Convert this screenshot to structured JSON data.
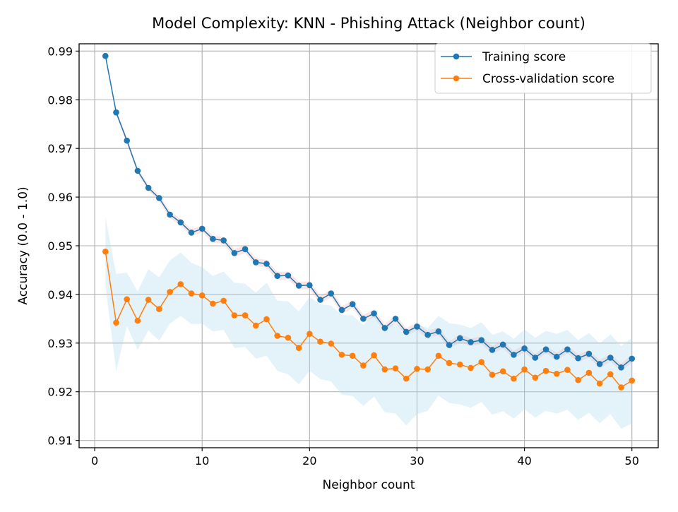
{
  "chart_data": {
    "type": "line",
    "title": "Model Complexity: KNN - Phishing Attack (Neighbor count)",
    "xlabel": "Neighbor count",
    "ylabel": "Accuracy (0.0 - 1.0)",
    "xlim": [
      -1.45,
      52.45
    ],
    "ylim": [
      0.9085,
      0.9915
    ],
    "xticks": [
      0,
      10,
      20,
      30,
      40,
      50
    ],
    "yticks": [
      0.91,
      0.92,
      0.93,
      0.94,
      0.95,
      0.96,
      0.97,
      0.98,
      0.99
    ],
    "xtick_labels": [
      "0",
      "10",
      "20",
      "30",
      "40",
      "50"
    ],
    "ytick_labels": [
      "0.91",
      "0.92",
      "0.93",
      "0.94",
      "0.95",
      "0.96",
      "0.97",
      "0.98",
      "0.99"
    ],
    "grid": true,
    "legend_position": "top-right",
    "x": [
      1,
      2,
      3,
      4,
      5,
      6,
      7,
      8,
      9,
      10,
      11,
      12,
      13,
      14,
      15,
      16,
      17,
      18,
      19,
      20,
      21,
      22,
      23,
      24,
      25,
      26,
      27,
      28,
      29,
      30,
      31,
      32,
      33,
      34,
      35,
      36,
      37,
      38,
      39,
      40,
      41,
      42,
      43,
      44,
      45,
      46,
      47,
      48,
      49,
      50
    ],
    "series": [
      {
        "name": "Training score",
        "color": "#1f77b4",
        "band_color": "#f4a8a0",
        "values": [
          0.989,
          0.9774,
          0.9716,
          0.9654,
          0.9619,
          0.9598,
          0.9564,
          0.9548,
          0.9527,
          0.9535,
          0.9514,
          0.9511,
          0.9485,
          0.9493,
          0.9466,
          0.9463,
          0.9438,
          0.9439,
          0.9418,
          0.9419,
          0.9389,
          0.9402,
          0.9368,
          0.938,
          0.935,
          0.9361,
          0.9331,
          0.935,
          0.9323,
          0.9334,
          0.9317,
          0.9324,
          0.9296,
          0.931,
          0.9302,
          0.9306,
          0.9286,
          0.9297,
          0.9276,
          0.9289,
          0.927,
          0.9287,
          0.9272,
          0.9287,
          0.9269,
          0.9278,
          0.9257,
          0.927,
          0.925,
          0.9268
        ],
        "band": [
          0.0004,
          0.0006,
          0.0006,
          0.0006,
          0.0006,
          0.0006,
          0.0007,
          0.0007,
          0.0007,
          0.0007,
          0.0007,
          0.0007,
          0.0008,
          0.0008,
          0.0008,
          0.0008,
          0.0008,
          0.0008,
          0.0008,
          0.0008,
          0.0008,
          0.0008,
          0.0008,
          0.0008,
          0.0008,
          0.0008,
          0.0008,
          0.0008,
          0.0008,
          0.0008,
          0.0008,
          0.0008,
          0.0008,
          0.0008,
          0.0008,
          0.0008,
          0.0008,
          0.0008,
          0.0008,
          0.0008,
          0.0008,
          0.0008,
          0.0008,
          0.0008,
          0.0008,
          0.0008,
          0.0008,
          0.0008,
          0.0008,
          0.0008
        ]
      },
      {
        "name": "Cross-validation score",
        "color": "#ff7f0e",
        "band_color": "#a6d8ef",
        "values": [
          0.9488,
          0.9342,
          0.939,
          0.9346,
          0.9389,
          0.937,
          0.9405,
          0.9421,
          0.9402,
          0.9398,
          0.9381,
          0.9387,
          0.9357,
          0.9357,
          0.9336,
          0.9349,
          0.9315,
          0.9311,
          0.929,
          0.9319,
          0.9303,
          0.9299,
          0.9276,
          0.9274,
          0.9254,
          0.9275,
          0.9246,
          0.9248,
          0.9227,
          0.9247,
          0.9246,
          0.9274,
          0.9259,
          0.9256,
          0.9249,
          0.9261,
          0.9235,
          0.9242,
          0.9227,
          0.9246,
          0.9229,
          0.9243,
          0.9237,
          0.9245,
          0.9224,
          0.9239,
          0.9217,
          0.9236,
          0.9209,
          0.9223
        ],
        "band": [
          0.007,
          0.01,
          0.0055,
          0.006,
          0.0063,
          0.0065,
          0.0065,
          0.0065,
          0.0063,
          0.0058,
          0.0057,
          0.006,
          0.0067,
          0.0065,
          0.0068,
          0.0075,
          0.0072,
          0.0075,
          0.0075,
          0.0076,
          0.0077,
          0.0078,
          0.0082,
          0.0083,
          0.0083,
          0.0085,
          0.0088,
          0.0093,
          0.0096,
          0.0093,
          0.0085,
          0.0082,
          0.0082,
          0.0082,
          0.0082,
          0.0082,
          0.0082,
          0.0082,
          0.0082,
          0.0082,
          0.0082,
          0.0082,
          0.0082,
          0.0082,
          0.0082,
          0.0082,
          0.0082,
          0.0082,
          0.0085,
          0.0088
        ]
      }
    ]
  }
}
